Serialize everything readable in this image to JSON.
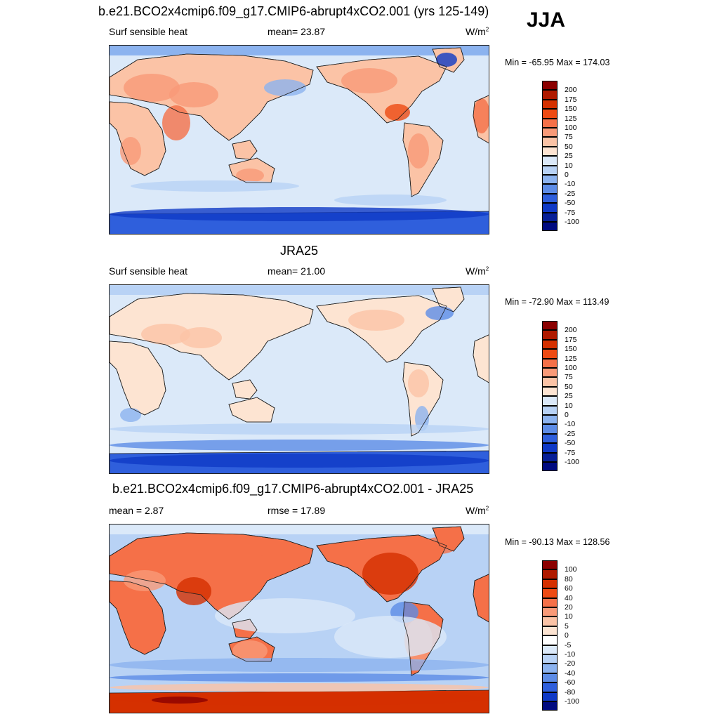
{
  "header": {
    "season": "JJA"
  },
  "panels": [
    {
      "title": "b.e21.BCO2x4cmip6.f09_g17.CMIP6-abrupt4xCO2.001 (yrs 125-149)",
      "left_label": "Surf sensible heat",
      "center_label": "mean=  23.87",
      "units": "W/m",
      "units_sup": "2",
      "minmax": "Min = -65.95 Max = 174.03",
      "scheme": "model",
      "colorbar": {
        "labels": [
          "200",
          "175",
          "150",
          "125",
          "100",
          "75",
          "50",
          "25",
          "10",
          "0",
          "-10",
          "-25",
          "-50",
          "-75",
          "-100"
        ],
        "colors": [
          "#8b0000",
          "#b01a00",
          "#d53000",
          "#ee4a13",
          "#f57048",
          "#f99a78",
          "#fbc3a6",
          "#fde4d2",
          "#dbe9f9",
          "#b8d2f5",
          "#8cb3ef",
          "#5d8ce6",
          "#2f5fdc",
          "#0f39c6",
          "#071f97",
          "#000a80"
        ]
      }
    },
    {
      "title": "JRA25",
      "left_label": "Surf sensible heat",
      "center_label": "mean=  21.00",
      "units": "W/m",
      "units_sup": "2",
      "minmax": "Min = -72.90 Max = 113.49",
      "scheme": "obs",
      "colorbar": {
        "labels": [
          "200",
          "175",
          "150",
          "125",
          "100",
          "75",
          "50",
          "25",
          "10",
          "0",
          "-10",
          "-25",
          "-50",
          "-75",
          "-100"
        ],
        "colors": [
          "#8b0000",
          "#b01a00",
          "#d53000",
          "#ee4a13",
          "#f57048",
          "#f99a78",
          "#fbc3a6",
          "#fde4d2",
          "#dbe9f9",
          "#b8d2f5",
          "#8cb3ef",
          "#5d8ce6",
          "#2f5fdc",
          "#0f39c6",
          "#071f97",
          "#000a80"
        ]
      }
    },
    {
      "title": "b.e21.BCO2x4cmip6.f09_g17.CMIP6-abrupt4xCO2.001 - JRA25",
      "left_label": "mean =   2.87",
      "center_label": "rmse =  17.89",
      "units": "W/m",
      "units_sup": "2",
      "minmax": "Min = -90.13 Max = 128.56",
      "scheme": "diff",
      "colorbar": {
        "labels": [
          "100",
          "80",
          "60",
          "40",
          "20",
          "10",
          "5",
          "0",
          "-5",
          "-10",
          "-20",
          "-40",
          "-60",
          "-80",
          "-100"
        ],
        "colors": [
          "#8b0000",
          "#b01a00",
          "#d53000",
          "#ee4a13",
          "#f57048",
          "#f99a78",
          "#fbc3a6",
          "#fde4d2",
          "#ffffff",
          "#dbe9f9",
          "#b8d2f5",
          "#8cb3ef",
          "#5d8ce6",
          "#2f5fdc",
          "#0f39c6",
          "#000a80"
        ]
      }
    }
  ]
}
